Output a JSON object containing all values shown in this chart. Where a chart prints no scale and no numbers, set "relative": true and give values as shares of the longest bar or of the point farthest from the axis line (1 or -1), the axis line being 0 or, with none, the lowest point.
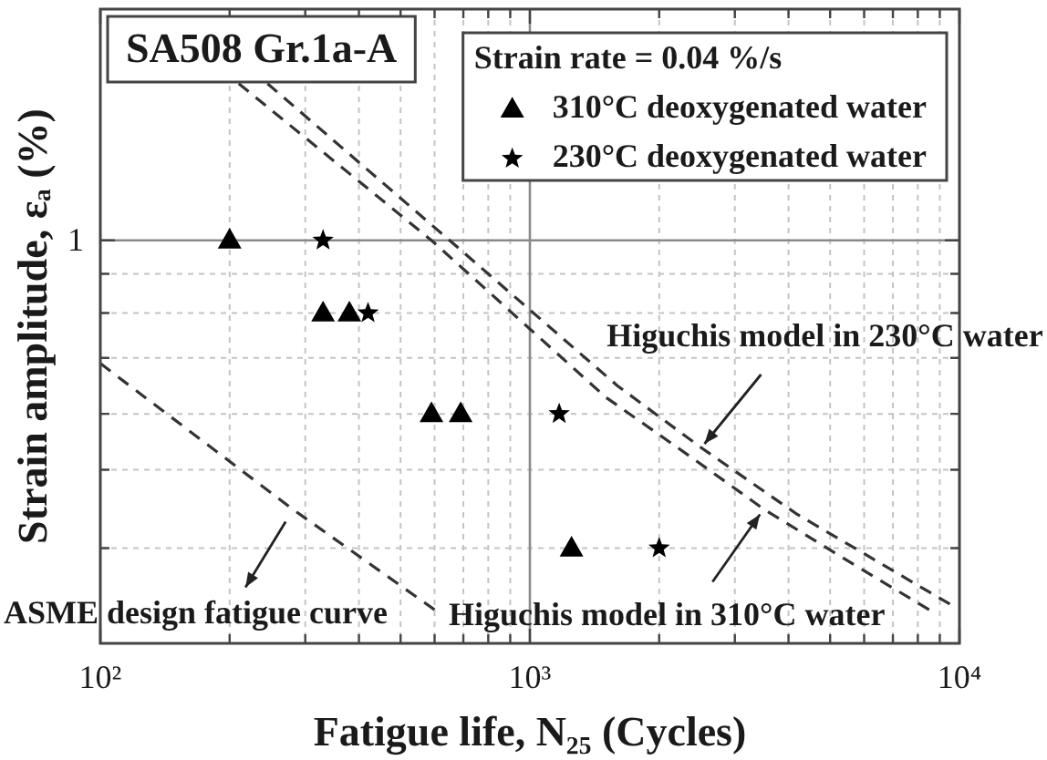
{
  "chart_data": {
    "type": "scatter",
    "title": "SA508 Gr.1a-A",
    "xlabel": "Fatigue life, N₂₅ (Cycles)",
    "ylabel": "Strain amplitude, εₐ (%)",
    "legend_title": "Strain rate = 0.04 %/s",
    "relative": true,
    "log": "x",
    "xlim": [
      100,
      10000
    ],
    "xticks": [
      {
        "value": 100,
        "label": "10²"
      },
      {
        "value": 200,
        "label": null
      },
      {
        "value": 300,
        "label": null
      },
      {
        "value": 400,
        "label": null
      },
      {
        "value": 500,
        "label": null
      },
      {
        "value": 600,
        "label": null
      },
      {
        "value": 700,
        "label": null
      },
      {
        "value": 800,
        "label": null
      },
      {
        "value": 900,
        "label": null
      },
      {
        "value": 1000,
        "label": "10³"
      },
      {
        "value": 2000,
        "label": null
      },
      {
        "value": 3000,
        "label": null
      },
      {
        "value": 4000,
        "label": null
      },
      {
        "value": 5000,
        "label": null
      },
      {
        "value": 6000,
        "label": null
      },
      {
        "value": 7000,
        "label": null
      },
      {
        "value": 8000,
        "label": null
      },
      {
        "value": 9000,
        "label": null
      },
      {
        "value": 10000,
        "label": "10⁴"
      }
    ],
    "grid": "x",
    "legend": "top right",
    "ref_lines": [
      {
        "axis": "y",
        "value": 0.72,
        "color": "#8a8a8a"
      },
      {
        "axis": "y",
        "value": 0.66,
        "color": "#c4c4c4",
        "line_style": "dashed"
      },
      {
        "axis": "y",
        "value": 0.59,
        "color": "#c4c4c4",
        "line_style": "dashed"
      },
      {
        "axis": "y",
        "value": 0.51,
        "color": "#c4c4c4",
        "line_style": "dashed"
      },
      {
        "axis": "y",
        "value": 0.41,
        "color": "#c4c4c4",
        "line_style": "dashed"
      },
      {
        "axis": "y",
        "value": 0.31,
        "color": "#c4c4c4",
        "line_style": "dashed"
      },
      {
        "axis": "y",
        "value": 0.17,
        "color": "#c4c4c4",
        "line_style": "dashed"
      },
      {
        "axis": "x",
        "value": 1000,
        "color": "#8a8a8a"
      }
    ],
    "series": [
      {
        "name": "310°C deoxygenated water",
        "marker": "triangle",
        "color": "#000000",
        "x": [
          200,
          330,
          380,
          590,
          690,
          1250
        ],
        "values": [
          0.72,
          0.59,
          0.59,
          0.41,
          0.41,
          0.17
        ]
      },
      {
        "name": "230°C deoxygenated water",
        "marker": "star",
        "color": "#000000",
        "x": [
          330,
          420,
          1170,
          2000
        ],
        "values": [
          0.72,
          0.59,
          0.41,
          0.17
        ]
      },
      {
        "type": "line",
        "line_style": "dashed",
        "color": "#333333",
        "x": [
          100,
          280,
          600
        ],
        "values": [
          0.5,
          0.24,
          0.06
        ]
      },
      {
        "type": "line",
        "line_style": "dashed",
        "color": "#333333",
        "x": [
          210,
          590,
          1500,
          2400,
          3500,
          5700,
          8500
        ],
        "values": [
          1,
          0.72,
          0.44,
          0.33,
          0.24,
          0.14,
          0.06
        ]
      },
      {
        "type": "line",
        "line_style": "dashed",
        "color": "#333333",
        "x": [
          245,
          650,
          1600,
          2500,
          4200,
          7000,
          9500
        ],
        "values": [
          1,
          0.72,
          0.46,
          0.35,
          0.23,
          0.13,
          0.07
        ]
      }
    ],
    "annotations": [
      {
        "text": "ASME design fatigue curve",
        "x": 270,
        "y": 0.24
      },
      {
        "text": "Higuchis model in 230°C water",
        "x": 2500,
        "y": 0.35
      },
      {
        "text": "Higuchis model in 310°C water",
        "x": 3500,
        "y": 0.24
      },
      "1"
    ]
  }
}
